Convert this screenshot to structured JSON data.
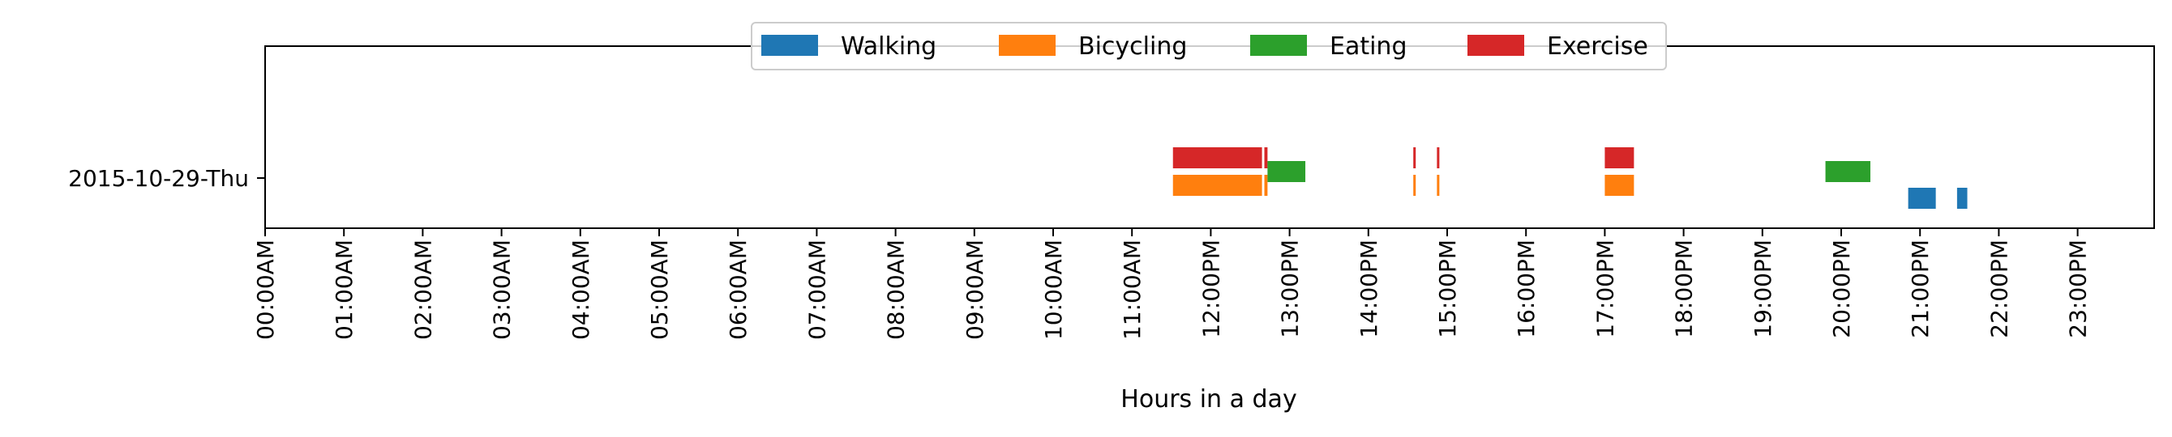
{
  "chart_data": {
    "type": "bar",
    "orientation": "horizontal-timeline",
    "xlabel": "Hours in a day",
    "ylabel": "",
    "xlim": [
      0,
      24
    ],
    "x_tick_labels": [
      "00:00AM",
      "01:00AM",
      "02:00AM",
      "03:00AM",
      "04:00AM",
      "05:00AM",
      "06:00AM",
      "07:00AM",
      "08:00AM",
      "09:00AM",
      "10:00AM",
      "11:00AM",
      "12:00PM",
      "13:00PM",
      "14:00PM",
      "15:00PM",
      "16:00PM",
      "17:00PM",
      "18:00PM",
      "19:00PM",
      "20:00PM",
      "21:00PM",
      "22:00PM",
      "23:00PM"
    ],
    "categories": [
      "2015-10-29-Thu"
    ],
    "legend_position": "top-center",
    "grid": false,
    "series": [
      {
        "name": "Walking",
        "color": "#1f77b4",
        "intervals": [
          [
            20.85,
            21.2
          ],
          [
            21.47,
            21.6
          ]
        ]
      },
      {
        "name": "Bicycling",
        "color": "#ff7f0e",
        "intervals": [
          [
            11.52,
            12.65
          ],
          [
            12.68,
            12.72
          ],
          [
            14.57,
            14.6
          ],
          [
            14.87,
            14.9
          ],
          [
            17.0,
            17.37
          ]
        ]
      },
      {
        "name": "Eating",
        "color": "#2ca02c",
        "intervals": [
          [
            12.72,
            13.2
          ],
          [
            19.8,
            20.37
          ]
        ]
      },
      {
        "name": "Exercise",
        "color": "#d62728",
        "intervals": [
          [
            11.52,
            12.65
          ],
          [
            12.68,
            12.72
          ],
          [
            14.57,
            14.6
          ],
          [
            14.87,
            14.9
          ],
          [
            17.0,
            17.37
          ]
        ]
      }
    ]
  }
}
